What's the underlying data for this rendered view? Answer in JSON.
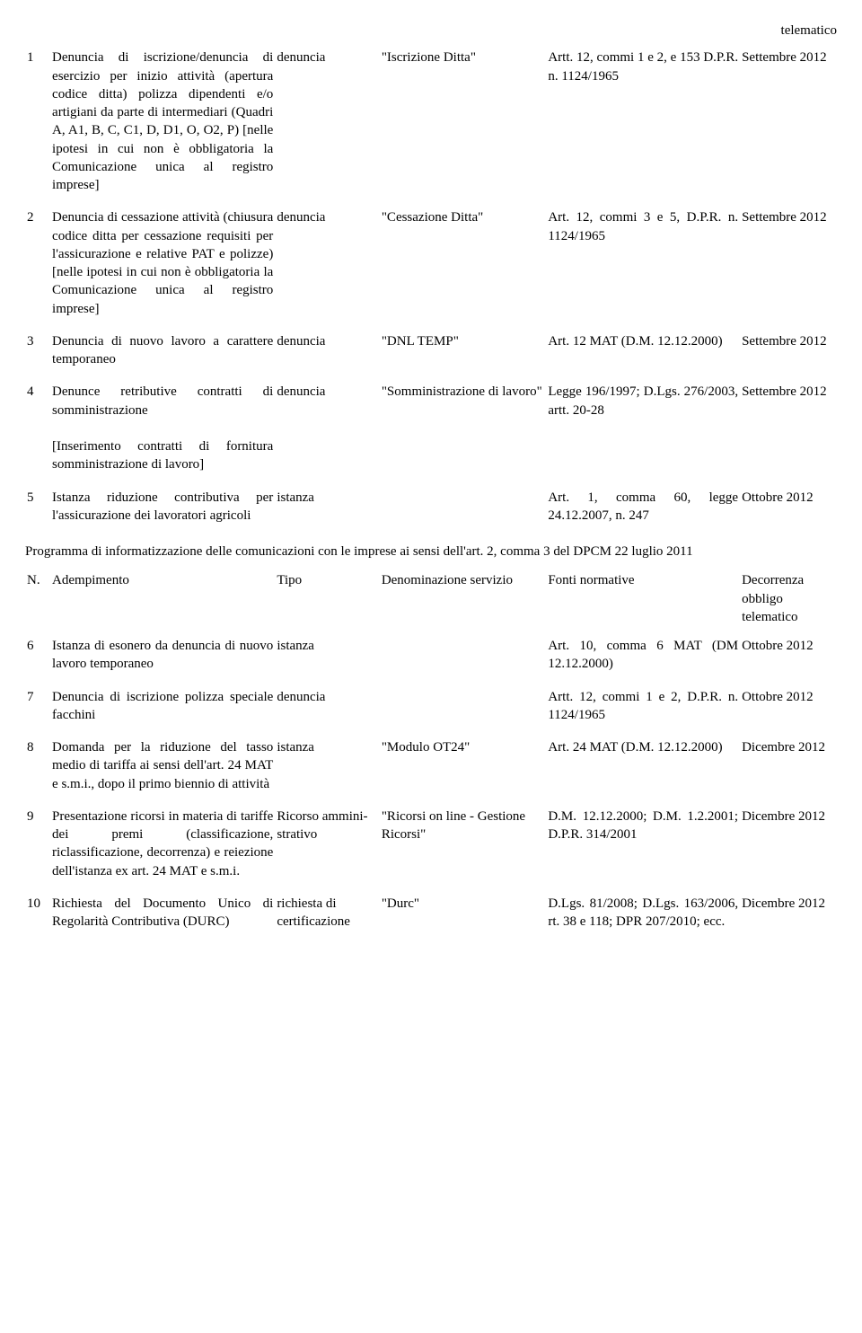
{
  "top_right": "telematico",
  "rows1": [
    {
      "n": "1",
      "adem": "Denuncia di iscrizione/denuncia di esercizio per inizio attività (apertura codice ditta) polizza dipendenti e/o artigiani da parte di intermediari (Quadri A, A1, B, C, C1, D, D1, O, O2, P) [nelle ipotesi in cui non è obbligatoria la Comunicazione unica al registro imprese]",
      "tipo": "denuncia",
      "denom": "\"Iscrizione Ditta\"",
      "fonti": "Artt. 12, commi 1 e 2, e 153 D.P.R. n. 1124/1965",
      "dec": "Settembre 2012"
    },
    {
      "n": "2",
      "adem": "Denuncia di cessazione attività (chiusura codice ditta per cessazione requisiti per l'assicurazione e relative PAT e polizze) [nelle ipotesi in cui non è obbligatoria la Comunicazione unica al registro imprese]",
      "tipo": "denuncia",
      "denom": "\"Cessazione Ditta\"",
      "fonti": "Art. 12, commi 3 e 5, D.P.R. n. 1124/1965",
      "dec": "Settembre 2012"
    },
    {
      "n": "3",
      "adem": "Denuncia di nuovo lavoro a carattere temporaneo",
      "tipo": "denuncia",
      "denom": "\"DNL TEMP\"",
      "fonti": "Art. 12 MAT (D.M. 12.12.2000)",
      "dec": "Settembre 2012"
    },
    {
      "n": "4",
      "adem": "Denunce retributive contratti di somministrazione\n\n[Inserimento contratti di fornitura somministrazione di lavoro]",
      "tipo": "denuncia",
      "denom": "\"Somministrazione di lavoro\"",
      "fonti": "Legge 196/1997; D.Lgs. 276/2003, artt. 20-28",
      "dec": "Settembre 2012"
    },
    {
      "n": "5",
      "adem": "Istanza riduzione contributiva per l'assicurazione dei lavoratori agricoli",
      "tipo": "istanza",
      "denom": "",
      "fonti": "Art. 1, comma 60, legge 24.12.2007, n. 247",
      "dec": "Ottobre 2012"
    }
  ],
  "section": "Programma di informatizzazione delle comunicazioni con le imprese ai sensi dell'art. 2, comma 3 del DPCM 22 luglio 2011",
  "header": {
    "n": "N.",
    "adem": "Adempimento",
    "tipo": "Tipo",
    "denom": "Denominazione servizio",
    "fonti": "Fonti normative",
    "dec": "Decorrenza obbligo telematico"
  },
  "rows2": [
    {
      "n": "6",
      "adem": "Istanza di esonero da denuncia di nuovo lavoro temporaneo",
      "tipo": "istanza",
      "denom": "",
      "fonti": "Art. 10, comma 6 MAT (DM 12.12.2000)",
      "dec": "Ottobre 2012"
    },
    {
      "n": "7",
      "adem": "Denuncia di iscrizione polizza speciale facchini",
      "tipo": "denuncia",
      "denom": "",
      "fonti": "Artt. 12, commi 1 e 2, D.P.R. n. 1124/1965",
      "dec": "Ottobre 2012"
    },
    {
      "n": "8",
      "adem": "Domanda per la riduzione del tasso medio di tariffa ai sensi dell'art. 24 MAT e s.m.i., dopo il primo biennio di attività",
      "tipo": "istanza",
      "denom": "\"Modulo OT24\"",
      "fonti": "Art. 24 MAT (D.M. 12.12.2000)",
      "dec": "Dicembre 2012"
    },
    {
      "n": "9",
      "adem": "Presentazione ricorsi in materia di tariffe dei premi (classificazione, riclassificazione, decorrenza) e reiezione dell'istanza ex art. 24 MAT e s.m.i.",
      "tipo": "Ricorso ammini-strativo",
      "denom": "\"Ricorsi on line - Gestione Ricorsi\"",
      "fonti": "D.M. 12.12.2000; D.M. 1.2.2001; D.P.R. 314/2001",
      "dec": "Dicembre 2012"
    },
    {
      "n": "10",
      "adem": "Richiesta del Documento Unico di Regolarità Contributiva (DURC)",
      "tipo": "richiesta di certificazione",
      "denom": "\"Durc\"",
      "fonti": "D.Lgs. 81/2008; D.Lgs. 163/2006, rt. 38 e 118; DPR 207/2010; ecc.",
      "dec": "Dicembre 2012"
    }
  ]
}
